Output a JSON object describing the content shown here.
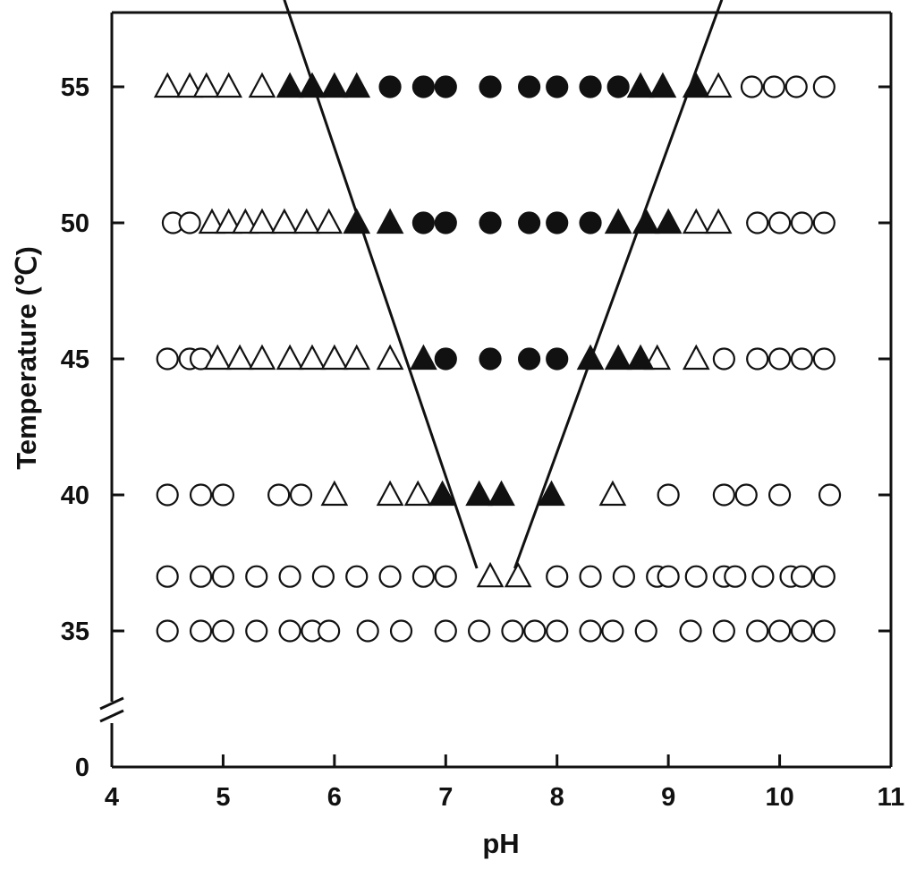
{
  "chart_data": {
    "type": "scatter",
    "title": "",
    "xlabel": "pH",
    "ylabel": "Temperature (℃)",
    "xlim": [
      4,
      11
    ],
    "ylim_broken": {
      "bottom": 0,
      "break_from": 0,
      "break_to": 32,
      "top": 58
    },
    "xticks": [
      "4",
      "5",
      "6",
      "7",
      "8",
      "9",
      "10",
      "11"
    ],
    "yticks": [
      "0",
      "35",
      "40",
      "45",
      "50",
      "55"
    ],
    "grid": false,
    "legend": "none",
    "marker_colors": {
      "stroke": "#111111",
      "filled": "#111111",
      "open": "#ffffff"
    },
    "series": [
      {
        "marker": "open-circle",
        "points": [
          [
            4.5,
            35
          ],
          [
            4.8,
            35
          ],
          [
            5.0,
            35
          ],
          [
            5.3,
            35
          ],
          [
            5.6,
            35
          ],
          [
            5.8,
            35
          ],
          [
            5.95,
            35
          ],
          [
            6.3,
            35
          ],
          [
            6.6,
            35
          ],
          [
            7.0,
            35
          ],
          [
            7.3,
            35
          ],
          [
            7.6,
            35
          ],
          [
            7.8,
            35
          ],
          [
            8.0,
            35
          ],
          [
            8.3,
            35
          ],
          [
            8.5,
            35
          ],
          [
            8.8,
            35
          ],
          [
            9.2,
            35
          ],
          [
            9.5,
            35
          ],
          [
            9.8,
            35
          ],
          [
            10.0,
            35
          ],
          [
            10.2,
            35
          ],
          [
            10.4,
            35
          ],
          [
            4.5,
            37
          ],
          [
            4.8,
            37
          ],
          [
            5.0,
            37
          ],
          [
            5.3,
            37
          ],
          [
            5.6,
            37
          ],
          [
            5.9,
            37
          ],
          [
            6.2,
            37
          ],
          [
            6.5,
            37
          ],
          [
            6.8,
            37
          ],
          [
            7.0,
            37
          ],
          [
            8.0,
            37
          ],
          [
            8.3,
            37
          ],
          [
            8.6,
            37
          ],
          [
            8.9,
            37
          ],
          [
            9.0,
            37
          ],
          [
            9.25,
            37
          ],
          [
            9.5,
            37
          ],
          [
            9.6,
            37
          ],
          [
            9.85,
            37
          ],
          [
            10.1,
            37
          ],
          [
            10.2,
            37
          ],
          [
            10.4,
            37
          ],
          [
            4.5,
            40
          ],
          [
            4.8,
            40
          ],
          [
            5.0,
            40
          ],
          [
            5.5,
            40
          ],
          [
            5.7,
            40
          ],
          [
            9.0,
            40
          ],
          [
            9.5,
            40
          ],
          [
            9.7,
            40
          ],
          [
            10.0,
            40
          ],
          [
            10.45,
            40
          ],
          [
            4.5,
            45
          ],
          [
            4.7,
            45
          ],
          [
            4.8,
            45
          ],
          [
            9.5,
            45
          ],
          [
            9.8,
            45
          ],
          [
            10.0,
            45
          ],
          [
            10.2,
            45
          ],
          [
            10.4,
            45
          ],
          [
            4.55,
            50
          ],
          [
            4.7,
            50
          ],
          [
            9.8,
            50
          ],
          [
            10.0,
            50
          ],
          [
            10.2,
            50
          ],
          [
            10.4,
            50
          ],
          [
            9.75,
            55
          ],
          [
            9.95,
            55
          ],
          [
            10.15,
            55
          ],
          [
            10.4,
            55
          ]
        ]
      },
      {
        "marker": "open-triangle",
        "points": [
          [
            7.4,
            37
          ],
          [
            7.65,
            37
          ],
          [
            6.0,
            40
          ],
          [
            6.5,
            40
          ],
          [
            6.75,
            40
          ],
          [
            8.5,
            40
          ],
          [
            4.95,
            45
          ],
          [
            5.15,
            45
          ],
          [
            5.35,
            45
          ],
          [
            5.6,
            45
          ],
          [
            5.8,
            45
          ],
          [
            6.0,
            45
          ],
          [
            6.2,
            45
          ],
          [
            6.5,
            45
          ],
          [
            8.9,
            45
          ],
          [
            9.25,
            45
          ],
          [
            4.9,
            50
          ],
          [
            5.05,
            50
          ],
          [
            5.2,
            50
          ],
          [
            5.35,
            50
          ],
          [
            5.55,
            50
          ],
          [
            5.75,
            50
          ],
          [
            5.95,
            50
          ],
          [
            9.25,
            50
          ],
          [
            9.45,
            50
          ],
          [
            4.5,
            55
          ],
          [
            4.7,
            55
          ],
          [
            4.85,
            55
          ],
          [
            5.05,
            55
          ],
          [
            5.35,
            55
          ],
          [
            9.45,
            55
          ]
        ]
      },
      {
        "marker": "filled-triangle",
        "points": [
          [
            6.97,
            40
          ],
          [
            7.3,
            40
          ],
          [
            7.5,
            40
          ],
          [
            7.95,
            40
          ],
          [
            6.8,
            45
          ],
          [
            8.3,
            45
          ],
          [
            8.55,
            45
          ],
          [
            8.75,
            45
          ],
          [
            6.2,
            50
          ],
          [
            6.5,
            50
          ],
          [
            8.55,
            50
          ],
          [
            8.8,
            50
          ],
          [
            9.0,
            50
          ],
          [
            5.6,
            55
          ],
          [
            5.8,
            55
          ],
          [
            6.0,
            55
          ],
          [
            6.2,
            55
          ],
          [
            8.75,
            55
          ],
          [
            8.95,
            55
          ],
          [
            9.25,
            55
          ]
        ]
      },
      {
        "marker": "filled-circle",
        "points": [
          [
            7.0,
            45
          ],
          [
            7.4,
            45
          ],
          [
            7.75,
            45
          ],
          [
            8.0,
            45
          ],
          [
            6.8,
            50
          ],
          [
            7.0,
            50
          ],
          [
            7.4,
            50
          ],
          [
            7.75,
            50
          ],
          [
            8.0,
            50
          ],
          [
            8.3,
            50
          ],
          [
            6.5,
            55
          ],
          [
            6.8,
            55
          ],
          [
            7.0,
            55
          ],
          [
            7.4,
            55
          ],
          [
            7.75,
            55
          ],
          [
            8.0,
            55
          ],
          [
            8.3,
            55
          ],
          [
            8.55,
            55
          ]
        ]
      }
    ],
    "boundary_lines": [
      {
        "from": [
          5.55,
          58.2
        ],
        "to": [
          7.28,
          37.3
        ]
      },
      {
        "from": [
          7.62,
          37.3
        ],
        "to": [
          9.48,
          58.2
        ]
      }
    ]
  }
}
